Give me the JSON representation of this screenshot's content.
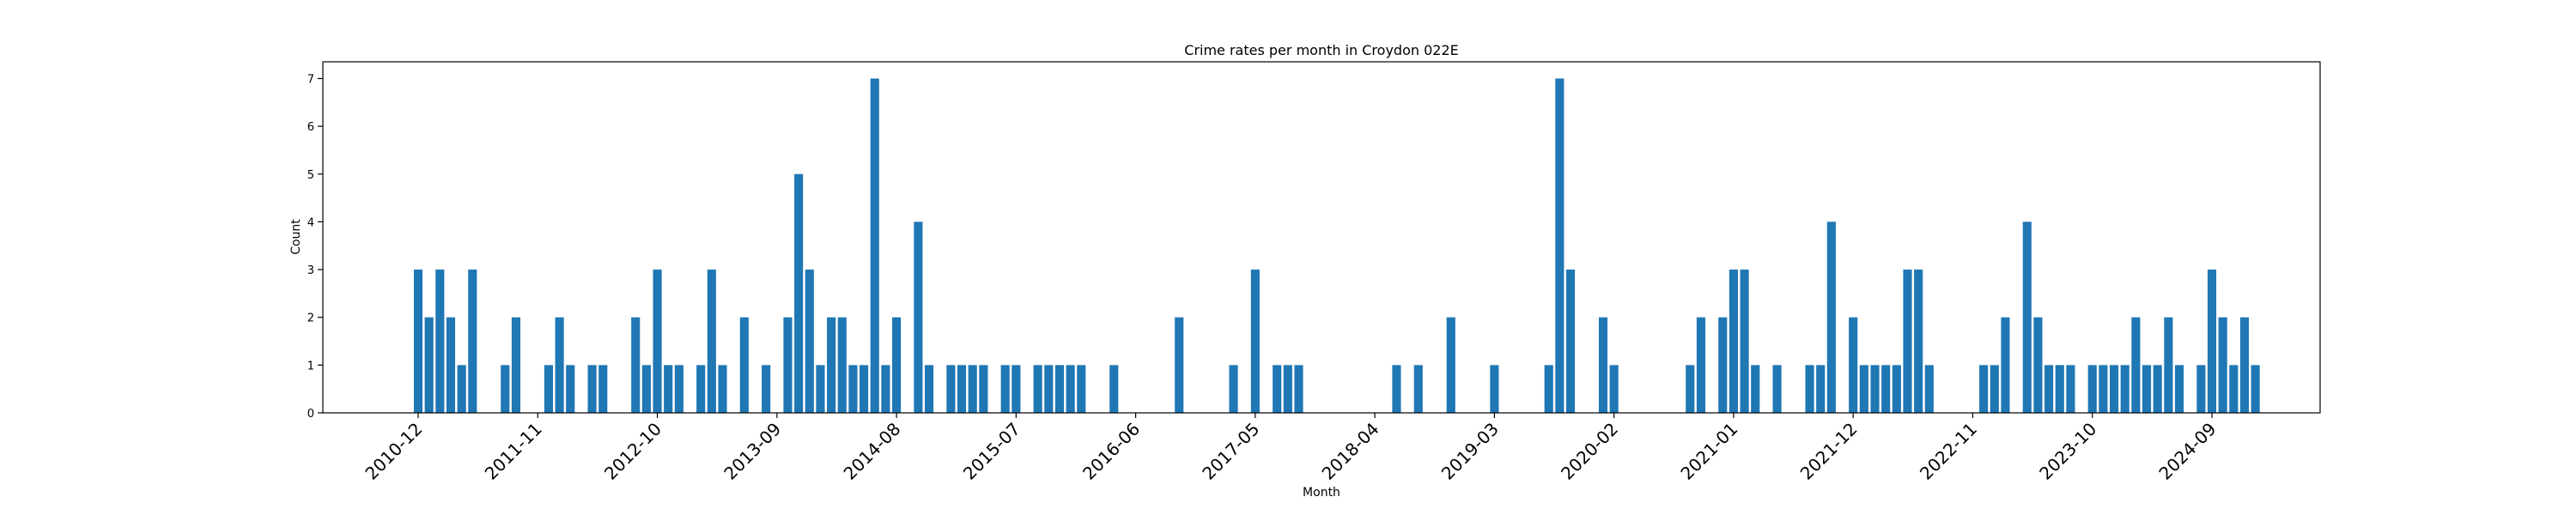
{
  "chart_data": {
    "type": "bar",
    "title": "Crime rates per month in Croydon 022E",
    "xlabel": "Month",
    "ylabel": "Count",
    "ylim": [
      0,
      7.35
    ],
    "yticks": [
      0,
      1,
      2,
      3,
      4,
      5,
      6,
      7
    ],
    "grid": false,
    "color": "#1f77b4",
    "xtick_labels": [
      "2010-12",
      "2011-11",
      "2012-10",
      "2013-09",
      "2014-08",
      "2015-07",
      "2016-06",
      "2017-05",
      "2018-04",
      "2019-03",
      "2020-02",
      "2021-01",
      "2021-12",
      "2022-11",
      "2023-10",
      "2024-09"
    ],
    "points": [
      {
        "x": "2010-12",
        "y": 3
      },
      {
        "x": "2011-01",
        "y": 2
      },
      {
        "x": "2011-02",
        "y": 3
      },
      {
        "x": "2011-03",
        "y": 2
      },
      {
        "x": "2011-04",
        "y": 1
      },
      {
        "x": "2011-05",
        "y": 3
      },
      {
        "x": "2011-08",
        "y": 1
      },
      {
        "x": "2011-09",
        "y": 2
      },
      {
        "x": "2011-12",
        "y": 1
      },
      {
        "x": "2012-01",
        "y": 2
      },
      {
        "x": "2012-02",
        "y": 1
      },
      {
        "x": "2012-04",
        "y": 1
      },
      {
        "x": "2012-05",
        "y": 1
      },
      {
        "x": "2012-08",
        "y": 2
      },
      {
        "x": "2012-09",
        "y": 1
      },
      {
        "x": "2012-10",
        "y": 3
      },
      {
        "x": "2012-11",
        "y": 1
      },
      {
        "x": "2012-12",
        "y": 1
      },
      {
        "x": "2013-02",
        "y": 1
      },
      {
        "x": "2013-03",
        "y": 3
      },
      {
        "x": "2013-04",
        "y": 1
      },
      {
        "x": "2013-06",
        "y": 2
      },
      {
        "x": "2013-08",
        "y": 1
      },
      {
        "x": "2013-10",
        "y": 2
      },
      {
        "x": "2013-11",
        "y": 5
      },
      {
        "x": "2013-12",
        "y": 3
      },
      {
        "x": "2014-01",
        "y": 1
      },
      {
        "x": "2014-02",
        "y": 2
      },
      {
        "x": "2014-03",
        "y": 2
      },
      {
        "x": "2014-04",
        "y": 1
      },
      {
        "x": "2014-05",
        "y": 1
      },
      {
        "x": "2014-06",
        "y": 7
      },
      {
        "x": "2014-07",
        "y": 1
      },
      {
        "x": "2014-08",
        "y": 2
      },
      {
        "x": "2014-10",
        "y": 4
      },
      {
        "x": "2014-11",
        "y": 1
      },
      {
        "x": "2015-01",
        "y": 1
      },
      {
        "x": "2015-02",
        "y": 1
      },
      {
        "x": "2015-03",
        "y": 1
      },
      {
        "x": "2015-04",
        "y": 1
      },
      {
        "x": "2015-06",
        "y": 1
      },
      {
        "x": "2015-07",
        "y": 1
      },
      {
        "x": "2015-09",
        "y": 1
      },
      {
        "x": "2015-10",
        "y": 1
      },
      {
        "x": "2015-11",
        "y": 1
      },
      {
        "x": "2015-12",
        "y": 1
      },
      {
        "x": "2016-01",
        "y": 1
      },
      {
        "x": "2016-04",
        "y": 1
      },
      {
        "x": "2016-10",
        "y": 2
      },
      {
        "x": "2017-03",
        "y": 1
      },
      {
        "x": "2017-05",
        "y": 3
      },
      {
        "x": "2017-07",
        "y": 1
      },
      {
        "x": "2017-08",
        "y": 1
      },
      {
        "x": "2017-09",
        "y": 1
      },
      {
        "x": "2018-06",
        "y": 1
      },
      {
        "x": "2018-08",
        "y": 1
      },
      {
        "x": "2018-11",
        "y": 2
      },
      {
        "x": "2019-03",
        "y": 1
      },
      {
        "x": "2019-08",
        "y": 1
      },
      {
        "x": "2019-09",
        "y": 7
      },
      {
        "x": "2019-10",
        "y": 3
      },
      {
        "x": "2020-01",
        "y": 2
      },
      {
        "x": "2020-02",
        "y": 1
      },
      {
        "x": "2020-09",
        "y": 1
      },
      {
        "x": "2020-10",
        "y": 2
      },
      {
        "x": "2020-12",
        "y": 2
      },
      {
        "x": "2021-01",
        "y": 3
      },
      {
        "x": "2021-02",
        "y": 3
      },
      {
        "x": "2021-03",
        "y": 1
      },
      {
        "x": "2021-05",
        "y": 1
      },
      {
        "x": "2021-08",
        "y": 1
      },
      {
        "x": "2021-09",
        "y": 1
      },
      {
        "x": "2021-10",
        "y": 4
      },
      {
        "x": "2021-12",
        "y": 2
      },
      {
        "x": "2022-01",
        "y": 1
      },
      {
        "x": "2022-02",
        "y": 1
      },
      {
        "x": "2022-03",
        "y": 1
      },
      {
        "x": "2022-04",
        "y": 1
      },
      {
        "x": "2022-05",
        "y": 3
      },
      {
        "x": "2022-06",
        "y": 3
      },
      {
        "x": "2022-07",
        "y": 1
      },
      {
        "x": "2022-12",
        "y": 1
      },
      {
        "x": "2023-01",
        "y": 1
      },
      {
        "x": "2023-02",
        "y": 2
      },
      {
        "x": "2023-04",
        "y": 4
      },
      {
        "x": "2023-05",
        "y": 2
      },
      {
        "x": "2023-06",
        "y": 1
      },
      {
        "x": "2023-07",
        "y": 1
      },
      {
        "x": "2023-08",
        "y": 1
      },
      {
        "x": "2023-10",
        "y": 1
      },
      {
        "x": "2023-11",
        "y": 1
      },
      {
        "x": "2023-12",
        "y": 1
      },
      {
        "x": "2024-01",
        "y": 1
      },
      {
        "x": "2024-02",
        "y": 2
      },
      {
        "x": "2024-03",
        "y": 1
      },
      {
        "x": "2024-04",
        "y": 1
      },
      {
        "x": "2024-05",
        "y": 2
      },
      {
        "x": "2024-06",
        "y": 1
      },
      {
        "x": "2024-08",
        "y": 1
      },
      {
        "x": "2024-09",
        "y": 3
      },
      {
        "x": "2024-10",
        "y": 2
      },
      {
        "x": "2024-11",
        "y": 1
      },
      {
        "x": "2024-12",
        "y": 2
      },
      {
        "x": "2025-01",
        "y": 1
      }
    ]
  }
}
